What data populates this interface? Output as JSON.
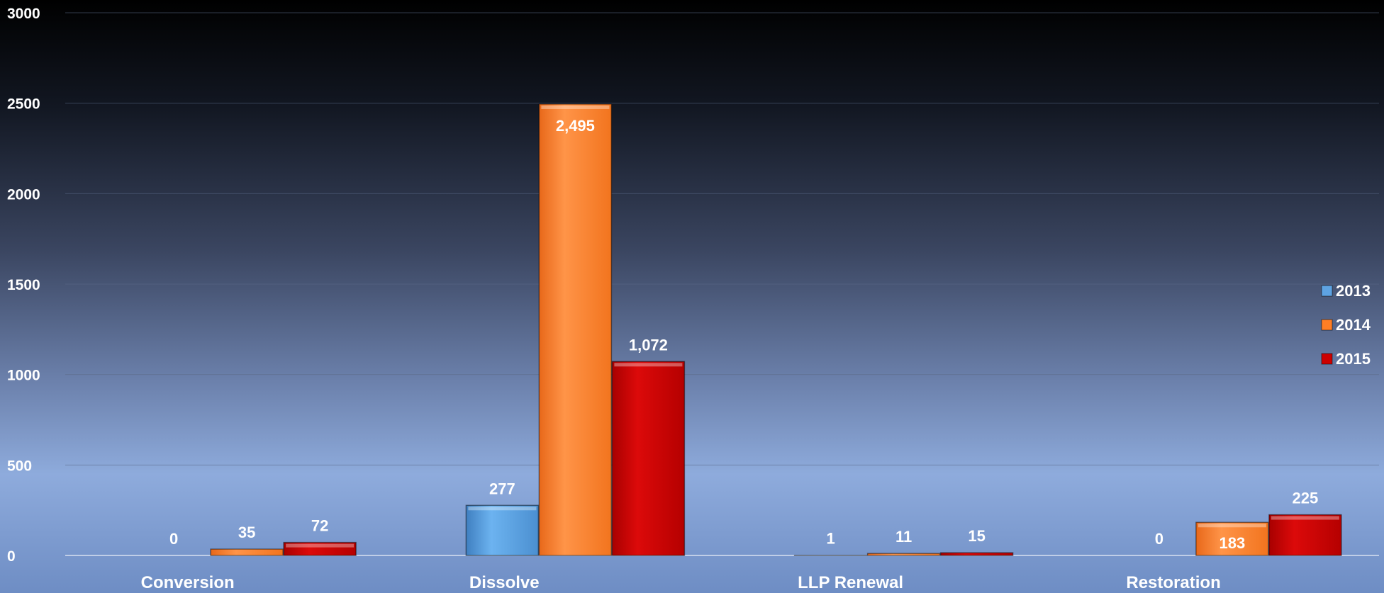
{
  "chart_data": {
    "type": "bar",
    "categories": [
      "Conversion",
      "Dissolve",
      "LLP Renewal",
      "Restoration"
    ],
    "series": [
      {
        "name": "2013",
        "values": [
          0,
          277,
          1,
          0
        ],
        "labels": [
          "0",
          "277",
          "1",
          "0"
        ],
        "color": "#5ea3e2"
      },
      {
        "name": "2014",
        "values": [
          35,
          2495,
          11,
          183
        ],
        "labels": [
          "35",
          "2,495",
          "11",
          "183"
        ],
        "color": "#ff7e24"
      },
      {
        "name": "2015",
        "values": [
          72,
          1072,
          15,
          225
        ],
        "labels": [
          "72",
          "1,072",
          "15",
          "225"
        ],
        "color": "#cc0000"
      }
    ],
    "ylim": [
      0,
      3000
    ],
    "yticks": [
      "0",
      "500",
      "1000",
      "1500",
      "2000",
      "2500",
      "3000"
    ],
    "grid": true,
    "legend_position": "right"
  }
}
